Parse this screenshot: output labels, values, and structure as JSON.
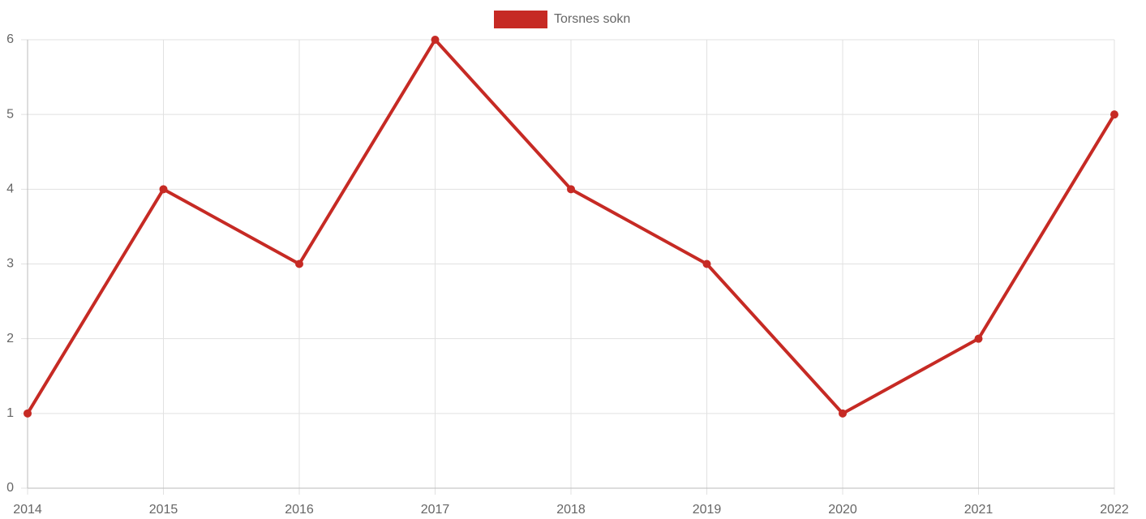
{
  "chart_data": {
    "type": "line",
    "categories": [
      "2014",
      "2015",
      "2016",
      "2017",
      "2018",
      "2019",
      "2020",
      "2021",
      "2022"
    ],
    "series": [
      {
        "name": "Torsnes sokn",
        "color": "#c62a24",
        "values": [
          1,
          4,
          3,
          6,
          4,
          3,
          1,
          2,
          5
        ]
      }
    ],
    "ylim": [
      0,
      6
    ],
    "yticks": [
      0,
      1,
      2,
      3,
      4,
      5,
      6
    ],
    "grid": true,
    "legend": "top"
  }
}
